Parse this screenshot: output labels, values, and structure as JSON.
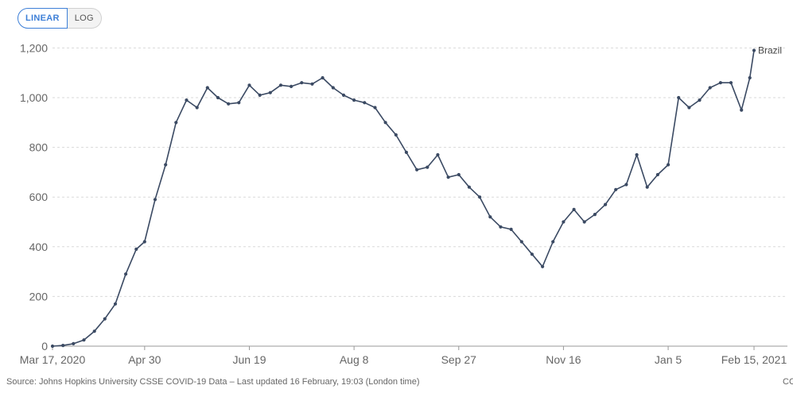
{
  "toolbar": {
    "linear_label": "LINEAR",
    "log_label": "LOG"
  },
  "footer": {
    "source": "Source: Johns Hopkins University CSSE COVID-19 Data – Last updated 16 February, 19:03 (London time)",
    "license": "CC"
  },
  "colors": {
    "line": "#3b4a63",
    "grid": "#d9d9d9",
    "active": "#3d7fd7"
  },
  "chart_data": {
    "type": "line",
    "x_ticks": [
      "Mar 17, 2020",
      "Apr 30",
      "Jun 19",
      "Aug 8",
      "Sep 27",
      "Nov 16",
      "Jan 5",
      "Feb 15, 2021"
    ],
    "y_ticks": [
      "0",
      "200",
      "400",
      "600",
      "800",
      "1,000",
      "1,200"
    ],
    "ylim": [
      0,
      1250
    ],
    "grid": true,
    "scale": "linear",
    "x": [
      "2020-03-17",
      "2020-03-22",
      "2020-03-27",
      "2020-04-01",
      "2020-04-06",
      "2020-04-11",
      "2020-04-16",
      "2020-04-21",
      "2020-04-26",
      "2020-04-30",
      "2020-05-05",
      "2020-05-10",
      "2020-05-15",
      "2020-05-20",
      "2020-05-25",
      "2020-05-30",
      "2020-06-04",
      "2020-06-09",
      "2020-06-14",
      "2020-06-19",
      "2020-06-24",
      "2020-06-29",
      "2020-07-04",
      "2020-07-09",
      "2020-07-14",
      "2020-07-19",
      "2020-07-24",
      "2020-07-29",
      "2020-08-03",
      "2020-08-08",
      "2020-08-13",
      "2020-08-18",
      "2020-08-23",
      "2020-08-28",
      "2020-09-02",
      "2020-09-07",
      "2020-09-12",
      "2020-09-17",
      "2020-09-22",
      "2020-09-27",
      "2020-10-02",
      "2020-10-07",
      "2020-10-12",
      "2020-10-17",
      "2020-10-22",
      "2020-10-27",
      "2020-11-01",
      "2020-11-06",
      "2020-11-11",
      "2020-11-16",
      "2020-11-21",
      "2020-11-26",
      "2020-12-01",
      "2020-12-06",
      "2020-12-11",
      "2020-12-16",
      "2020-12-21",
      "2020-12-26",
      "2020-12-31",
      "2021-01-05",
      "2021-01-10",
      "2021-01-15",
      "2021-01-20",
      "2021-01-25",
      "2021-01-30",
      "2021-02-04",
      "2021-02-09",
      "2021-02-13",
      "2021-02-15"
    ],
    "series": [
      {
        "name": "Brazil",
        "values": [
          0,
          3,
          10,
          25,
          60,
          110,
          170,
          290,
          390,
          420,
          590,
          730,
          900,
          990,
          960,
          1040,
          1000,
          975,
          980,
          1050,
          1010,
          1020,
          1050,
          1045,
          1060,
          1055,
          1080,
          1040,
          1010,
          990,
          980,
          960,
          900,
          850,
          780,
          710,
          720,
          770,
          680,
          690,
          640,
          600,
          520,
          480,
          470,
          420,
          370,
          320,
          420,
          500,
          550,
          500,
          530,
          570,
          630,
          650,
          770,
          640,
          690,
          730,
          1000,
          960,
          990,
          1040,
          1060,
          1060,
          950,
          1080,
          1190
        ]
      }
    ]
  }
}
